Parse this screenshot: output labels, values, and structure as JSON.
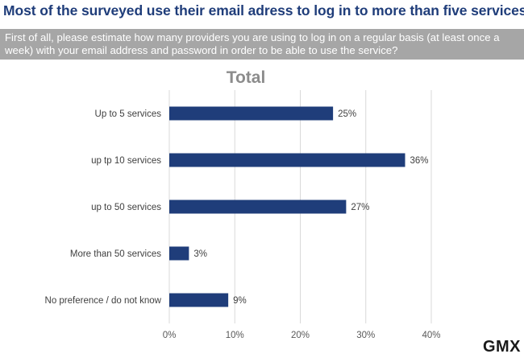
{
  "headline": "Most of the surveyed use their email adress to log in to more than five services",
  "question": {
    "line1": "First of all, please estimate how many providers you are using to log in on a regular basis (at least once a",
    "line2": "week) with your email address and password in order to be able to use the service?"
  },
  "logo_text": "GMX",
  "chart_data": {
    "type": "bar",
    "orientation": "horizontal",
    "title": "Total",
    "categories": [
      "Up to 5 services",
      "up tp 10 services",
      "up to 50 services",
      "More than 50 services",
      "No preference / do not know"
    ],
    "values": [
      25,
      36,
      27,
      3,
      9
    ],
    "value_labels": [
      "25%",
      "36%",
      "27%",
      "3%",
      "9%"
    ],
    "xlim": [
      0,
      40
    ],
    "x_ticks": [
      0,
      10,
      20,
      30,
      40
    ],
    "x_tick_labels": [
      "0%",
      "10%",
      "20%",
      "30%",
      "40%"
    ],
    "grid": true,
    "bar_color": "#1f3d7a",
    "grid_color": "#d9d9d9",
    "title_color": "#8c8c8c"
  }
}
